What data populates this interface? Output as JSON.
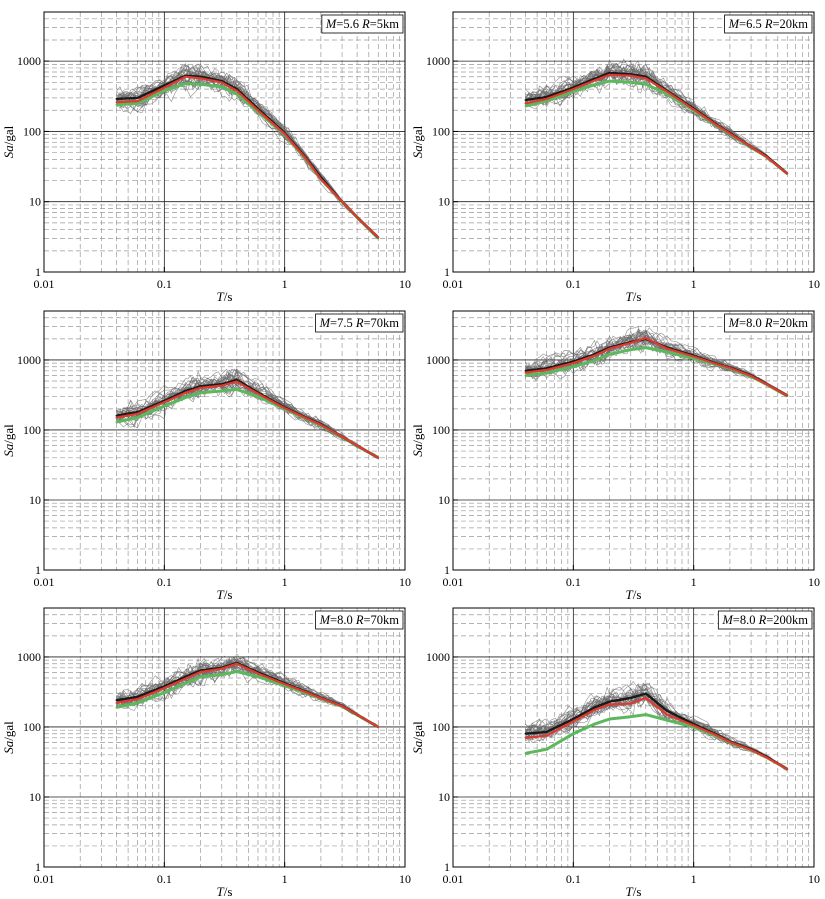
{
  "figure": {
    "description": ""
  },
  "chart_data": [
    {
      "type": "line",
      "scale": "log-log",
      "annotation": {
        "M": "5.6",
        "R": "5km"
      },
      "xlabel": "T/s",
      "ylabel": "Sa/gal",
      "xlim": [
        0.01,
        10
      ],
      "ylim": [
        1,
        5000
      ],
      "xticks": [
        "0.01",
        "0.1",
        "1",
        "10"
      ],
      "yticks": [
        "1",
        "10",
        "100",
        "1000"
      ],
      "grid": true,
      "x": [
        0.04,
        0.06,
        0.1,
        0.15,
        0.2,
        0.3,
        0.4,
        0.6,
        1.0,
        1.5,
        2,
        3,
        4,
        6
      ],
      "series": [
        {
          "color": "#1a1a1a",
          "values": [
            290,
            300,
            450,
            620,
            600,
            520,
            400,
            210,
            95,
            42,
            22,
            10,
            6,
            3.1
          ]
        },
        {
          "color": "#e03a2f",
          "values": [
            260,
            270,
            420,
            600,
            570,
            500,
            380,
            200,
            92,
            41,
            21,
            10,
            6,
            3.1
          ]
        },
        {
          "color": "#5cb85c",
          "values": [
            240,
            250,
            380,
            480,
            470,
            430,
            340,
            190,
            90,
            40,
            21,
            10,
            6,
            3.0
          ]
        }
      ]
    },
    {
      "type": "line",
      "scale": "log-log",
      "annotation": {
        "M": "6.5",
        "R": "20km"
      },
      "xlabel": "T/s",
      "ylabel": "Sa/gal",
      "xlim": [
        0.01,
        10
      ],
      "ylim": [
        1,
        5000
      ],
      "xticks": [
        "0.01",
        "0.1",
        "1",
        "10"
      ],
      "yticks": [
        "1",
        "10",
        "100",
        "1000"
      ],
      "grid": true,
      "x": [
        0.04,
        0.06,
        0.1,
        0.15,
        0.2,
        0.3,
        0.4,
        0.6,
        1.0,
        1.5,
        2,
        3,
        4,
        6
      ],
      "series": [
        {
          "color": "#1a1a1a",
          "values": [
            280,
            310,
            420,
            560,
            680,
            650,
            600,
            380,
            210,
            130,
            95,
            60,
            45,
            25
          ]
        },
        {
          "color": "#e03a2f",
          "values": [
            250,
            290,
            400,
            530,
            640,
            620,
            570,
            370,
            205,
            128,
            93,
            60,
            44,
            25
          ]
        },
        {
          "color": "#5cb85c",
          "values": [
            230,
            270,
            370,
            460,
            520,
            500,
            470,
            340,
            200,
            125,
            92,
            59,
            44,
            25
          ]
        }
      ]
    },
    {
      "type": "line",
      "scale": "log-log",
      "annotation": {
        "M": "7.5",
        "R": "70km"
      },
      "xlabel": "T/s",
      "ylabel": "Sa/gal",
      "xlim": [
        0.01,
        10
      ],
      "ylim": [
        1,
        5000
      ],
      "xticks": [
        "0.01",
        "0.1",
        "1",
        "10"
      ],
      "yticks": [
        "1",
        "10",
        "100",
        "1000"
      ],
      "grid": true,
      "x": [
        0.04,
        0.06,
        0.1,
        0.15,
        0.2,
        0.3,
        0.4,
        0.6,
        1.0,
        1.5,
        2,
        3,
        4,
        6
      ],
      "series": [
        {
          "color": "#1a1a1a",
          "values": [
            160,
            180,
            260,
            360,
            420,
            450,
            520,
            340,
            210,
            150,
            120,
            80,
            60,
            40
          ]
        },
        {
          "color": "#e03a2f",
          "values": [
            150,
            170,
            250,
            340,
            400,
            430,
            490,
            330,
            205,
            148,
            118,
            80,
            60,
            40
          ]
        },
        {
          "color": "#5cb85c",
          "values": [
            130,
            150,
            220,
            290,
            340,
            360,
            380,
            300,
            200,
            145,
            116,
            79,
            59,
            40
          ]
        }
      ]
    },
    {
      "type": "line",
      "scale": "log-log",
      "annotation": {
        "M": "8.0",
        "R": "20km"
      },
      "xlabel": "T/s",
      "ylabel": "Sa/gal",
      "xlim": [
        0.01,
        10
      ],
      "ylim": [
        1,
        5000
      ],
      "xticks": [
        "0.01",
        "0.1",
        "1",
        "10"
      ],
      "yticks": [
        "1",
        "10",
        "100",
        "1000"
      ],
      "grid": true,
      "x": [
        0.04,
        0.06,
        0.1,
        0.15,
        0.2,
        0.3,
        0.4,
        0.6,
        1.0,
        1.5,
        2,
        3,
        4,
        6
      ],
      "series": [
        {
          "color": "#1a1a1a",
          "values": [
            700,
            760,
            950,
            1200,
            1500,
            1800,
            2000,
            1500,
            1150,
            900,
            780,
            600,
            460,
            310
          ]
        },
        {
          "color": "#e03a2f",
          "values": [
            660,
            720,
            900,
            1150,
            1450,
            1750,
            2050,
            1450,
            1120,
            890,
            770,
            590,
            455,
            310
          ]
        },
        {
          "color": "#5cb85c",
          "values": [
            600,
            650,
            800,
            980,
            1200,
            1400,
            1500,
            1300,
            1050,
            870,
            760,
            580,
            450,
            305
          ]
        }
      ]
    },
    {
      "type": "line",
      "scale": "log-log",
      "annotation": {
        "M": "8.0",
        "R": "70km"
      },
      "xlabel": "T/s",
      "ylabel": "Sa/gal",
      "xlim": [
        0.01,
        10
      ],
      "ylim": [
        1,
        5000
      ],
      "xticks": [
        "0.01",
        "0.1",
        "1",
        "10"
      ],
      "yticks": [
        "1",
        "10",
        "100",
        "1000"
      ],
      "grid": true,
      "x": [
        0.04,
        0.06,
        0.1,
        0.15,
        0.2,
        0.3,
        0.4,
        0.6,
        1.0,
        1.5,
        2,
        3,
        4,
        6
      ],
      "series": [
        {
          "color": "#1a1a1a",
          "values": [
            240,
            270,
            380,
            520,
            640,
            700,
            820,
            600,
            420,
            320,
            260,
            200,
            150,
            100
          ]
        },
        {
          "color": "#e03a2f",
          "values": [
            220,
            250,
            360,
            490,
            610,
            680,
            800,
            580,
            410,
            315,
            258,
            198,
            150,
            100
          ]
        },
        {
          "color": "#5cb85c",
          "values": [
            190,
            220,
            310,
            420,
            520,
            560,
            620,
            520,
            390,
            305,
            255,
            196,
            148,
            100
          ]
        }
      ]
    },
    {
      "type": "line",
      "scale": "log-log",
      "annotation": {
        "M": "8.0",
        "R": "200km"
      },
      "xlabel": "T/s",
      "ylabel": "Sa/gal",
      "xlim": [
        0.01,
        10
      ],
      "ylim": [
        1,
        5000
      ],
      "xticks": [
        "0.01",
        "0.1",
        "1",
        "10"
      ],
      "yticks": [
        "1",
        "10",
        "100",
        "1000"
      ],
      "grid": true,
      "x": [
        0.04,
        0.06,
        0.1,
        0.15,
        0.2,
        0.3,
        0.4,
        0.6,
        1.0,
        1.5,
        2,
        3,
        4,
        6
      ],
      "series": [
        {
          "color": "#1a1a1a",
          "values": [
            80,
            85,
            130,
            190,
            230,
            260,
            300,
            170,
            110,
            80,
            62,
            48,
            38,
            25
          ]
        },
        {
          "color": "#e03a2f",
          "values": [
            70,
            75,
            120,
            175,
            210,
            215,
            260,
            150,
            105,
            78,
            61,
            47,
            37,
            25
          ]
        },
        {
          "color": "#5cb85c",
          "values": [
            42,
            48,
            80,
            110,
            130,
            140,
            150,
            125,
            100,
            76,
            60,
            47,
            37,
            25
          ]
        }
      ]
    }
  ]
}
